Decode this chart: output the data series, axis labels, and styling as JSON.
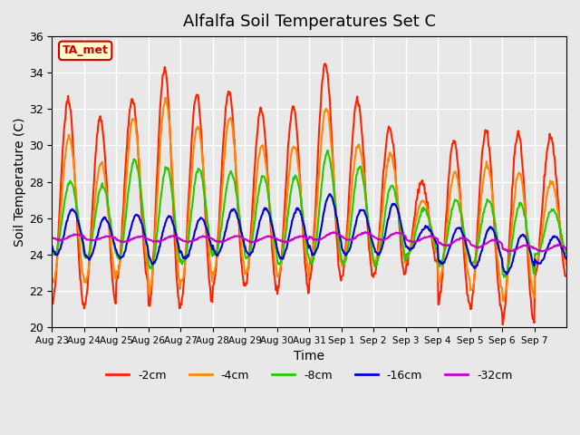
{
  "title": "Alfalfa Soil Temperatures Set C",
  "xlabel": "Time",
  "ylabel": "Soil Temperature (C)",
  "ylim": [
    20,
    36
  ],
  "n_days": 16,
  "background_color": "#e8e8e8",
  "plot_bg_color": "#e8e8e8",
  "annotation_text": "TA_met",
  "annotation_color": "#cc0000",
  "annotation_bg": "#ffffcc",
  "series_colors": {
    "-2cm": "#ff2200",
    "-4cm": "#ff8800",
    "-8cm": "#22cc00",
    "-16cm": "#0000dd",
    "-32cm": "#cc00cc"
  },
  "series_labels": [
    "-2cm",
    "-4cm",
    "-8cm",
    "-16cm",
    "-32cm"
  ],
  "xtick_labels": [
    "Aug 23",
    "Aug 24",
    "Aug 25",
    "Aug 26",
    "Aug 27",
    "Aug 28",
    "Aug 29",
    "Aug 30",
    "Aug 31",
    "Sep 1",
    "Sep 2",
    "Sep 3",
    "Sep 4",
    "Sep 5",
    "Sep 6",
    "Sep 7"
  ],
  "grid_color": "#ffffff",
  "linewidth": 1.5,
  "peaks_2cm": [
    32.5,
    31.5,
    32.5,
    34.2,
    32.8,
    33.0,
    32.0,
    32.1,
    34.5,
    32.5,
    31.0,
    28.0,
    30.3,
    30.8,
    30.7,
    30.5
  ],
  "troughs_2cm": [
    21.2,
    21.2,
    22.5,
    21.0,
    21.3,
    22.3,
    22.2,
    22.0,
    22.7,
    22.7,
    22.8,
    23.5,
    21.3,
    21.0,
    20.3,
    22.8
  ],
  "peaks_4cm": [
    30.5,
    29.0,
    31.5,
    32.5,
    31.0,
    31.5,
    30.0,
    30.0,
    32.0,
    30.0,
    29.5,
    27.0,
    28.5,
    29.0,
    28.5,
    28.0
  ],
  "troughs_4cm": [
    22.5,
    22.5,
    23.0,
    22.0,
    22.5,
    23.0,
    23.0,
    22.8,
    23.5,
    23.5,
    23.5,
    24.0,
    22.5,
    22.0,
    21.5,
    23.5
  ],
  "peaks_8cm": [
    28.0,
    27.8,
    29.2,
    28.8,
    28.7,
    28.5,
    28.3,
    28.3,
    29.6,
    28.8,
    27.8,
    26.5,
    27.0,
    27.0,
    26.8,
    26.5
  ],
  "troughs_8cm": [
    24.0,
    23.8,
    23.8,
    23.2,
    23.5,
    24.0,
    23.8,
    23.5,
    23.5,
    23.5,
    23.5,
    24.0,
    23.5,
    23.5,
    22.8,
    24.0
  ],
  "peaks_16cm": [
    26.5,
    26.0,
    26.2,
    26.1,
    26.0,
    26.5,
    26.5,
    26.5,
    27.3,
    26.5,
    26.8,
    25.5,
    25.5,
    25.5,
    25.1,
    25.0
  ],
  "troughs_16cm": [
    24.0,
    23.8,
    23.8,
    23.5,
    23.8,
    24.0,
    24.0,
    23.8,
    24.0,
    24.0,
    24.0,
    24.3,
    23.5,
    23.3,
    23.0,
    23.5
  ],
  "peaks_32cm": [
    25.1,
    25.0,
    25.0,
    25.0,
    25.0,
    25.0,
    25.0,
    25.0,
    25.2,
    25.2,
    25.2,
    25.0,
    24.9,
    24.8,
    24.5,
    24.5
  ],
  "troughs_32cm": [
    24.8,
    24.8,
    24.7,
    24.7,
    24.7,
    24.7,
    24.7,
    24.7,
    24.8,
    24.8,
    24.8,
    24.7,
    24.5,
    24.4,
    24.2,
    24.2
  ]
}
